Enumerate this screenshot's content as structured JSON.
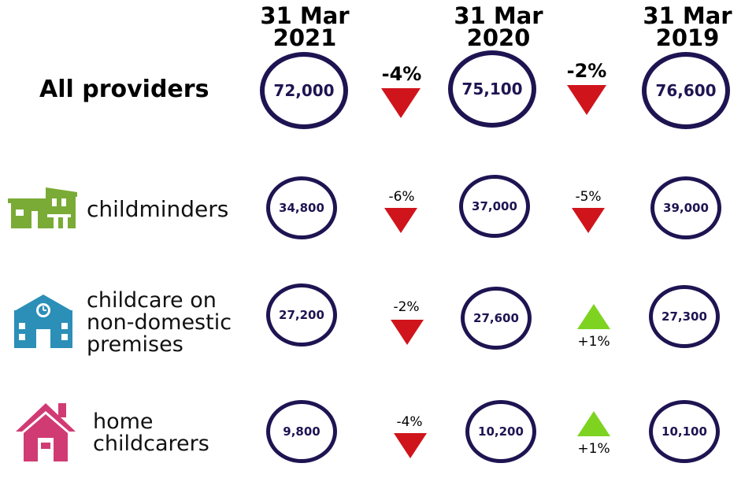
{
  "dates": [
    "31 Mar 2021",
    "31 Mar 2020",
    "31 Mar 2019"
  ],
  "colors": {
    "circle_border": "#1f1452",
    "decrease": "#d0141c",
    "increase": "#7ed321",
    "childminders_icon": "#7aab36",
    "nondomestic_icon": "#2b8fb8",
    "home_icon": "#d13b74"
  },
  "rows": [
    {
      "label": "All providers",
      "icon": "none",
      "values": [
        "72,000",
        "75,100",
        "76,600"
      ],
      "changes": [
        {
          "text": "-4%",
          "direction": "down"
        },
        {
          "text": "-2%",
          "direction": "down"
        }
      ]
    },
    {
      "label": "childminders",
      "icon": "house-building-icon",
      "values": [
        "34,800",
        "37,000",
        "39,000"
      ],
      "changes": [
        {
          "text": "-6%",
          "direction": "down"
        },
        {
          "text": "-5%",
          "direction": "down"
        }
      ]
    },
    {
      "label": "childcare on non-domestic premises",
      "label_lines": [
        "childcare on",
        "non-domestic",
        "premises"
      ],
      "icon": "school-building-icon",
      "values": [
        "27,200",
        "27,600",
        "27,300"
      ],
      "changes": [
        {
          "text": "-2%",
          "direction": "down"
        },
        {
          "text": "+1%",
          "direction": "up"
        }
      ]
    },
    {
      "label": "home childcarers",
      "label_lines": [
        "home",
        "childcarers"
      ],
      "icon": "home-icon",
      "values": [
        "9,800",
        "10,200",
        "10,100"
      ],
      "changes": [
        {
          "text": "-4%",
          "direction": "down"
        },
        {
          "text": "+1%",
          "direction": "up"
        }
      ]
    }
  ]
}
